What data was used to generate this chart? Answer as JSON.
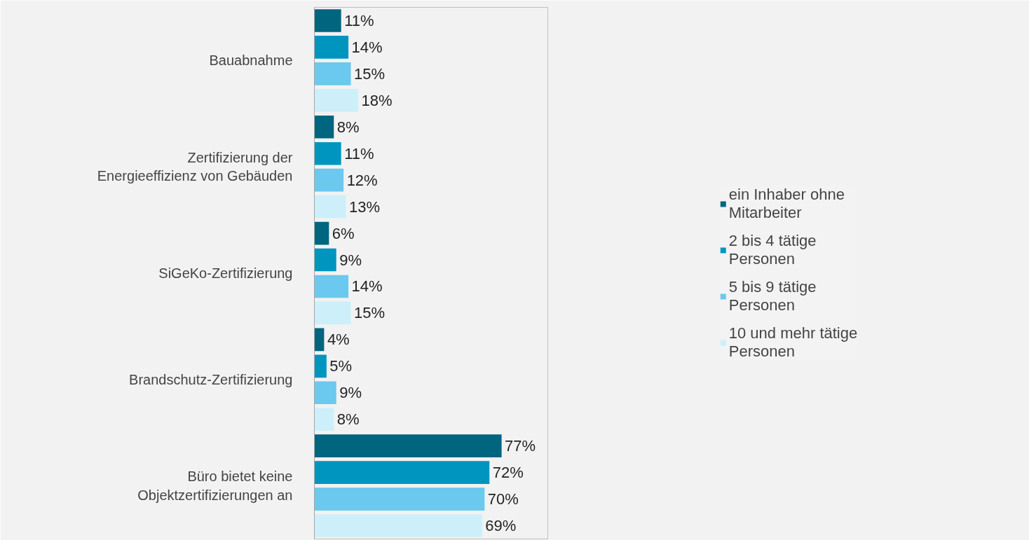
{
  "chart_data": {
    "type": "bar",
    "orientation": "horizontal",
    "categories": [
      "Bauabnahme",
      "Zertifizierung der\nEnergieeffizienz von Gebäuden",
      "SiGeKo-Zertifizierung",
      "Brandschutz-Zertifizierung",
      "Büro bietet keine\nObjektzertifizierungen an"
    ],
    "xlim": [
      0,
      96
    ],
    "series": [
      {
        "name": "ein Inhaber ohne\nMitarbeiter",
        "color": "#00657f",
        "values": [
          11,
          8,
          6,
          4,
          77
        ],
        "value_labels": [
          "11%",
          "8%",
          "6%",
          "4%",
          "77%"
        ]
      },
      {
        "name": "2 bis 4 tätige\nPersonen",
        "color": "#0095bf",
        "values": [
          14,
          11,
          9,
          5,
          72
        ],
        "value_labels": [
          "14%",
          "11%",
          "9%",
          "5%",
          "72%"
        ]
      },
      {
        "name": "5 bis 9 tätige\nPersonen",
        "color": "#6bc8ef",
        "values": [
          15,
          12,
          14,
          9,
          70
        ],
        "value_labels": [
          "15%",
          "12%",
          "14%",
          "9%",
          "70%"
        ]
      },
      {
        "name": "10 und mehr tätige\nPersonen",
        "color": "#cdeffa",
        "values": [
          18,
          13,
          15,
          8,
          69
        ],
        "value_labels": [
          "18%",
          "13%",
          "15%",
          "8%",
          "69%"
        ]
      }
    ],
    "legend": "right",
    "grid": false
  }
}
